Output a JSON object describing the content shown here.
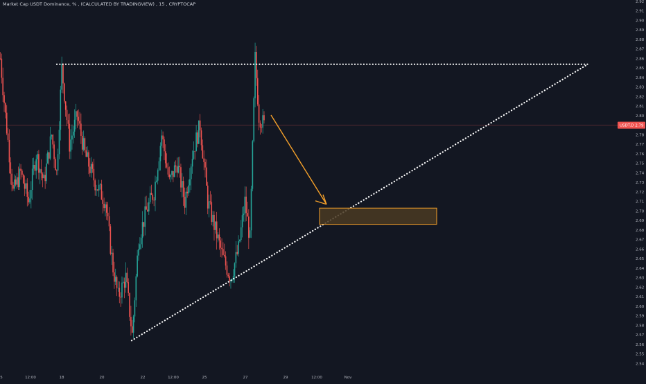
{
  "header": {
    "symbol_title": "Market Cap USDT Dominance, %",
    "source": "(CALCULATED BY TRADINGVIEW)",
    "interval": "15",
    "exchange": "CRYPTOCAP"
  },
  "price_tag": {
    "label": "USDT.D",
    "value": "2.79"
  },
  "colors": {
    "background": "#131722",
    "up": "#26a69a",
    "down": "#ef5350",
    "grid": "#1e222d",
    "axis_text": "#b2b5be",
    "arrow": "#f6a12a",
    "zone_fill": "#4a3a22",
    "zone_border": "#f6a12a",
    "trendline": "#ffffff",
    "price_line": "#ef5350"
  },
  "chart_data": {
    "type": "candlestick",
    "title": "Market Cap USDT Dominance, %",
    "ylim": [
      2.53,
      2.92
    ],
    "y_ticks": [
      2.54,
      2.55,
      2.56,
      2.57,
      2.58,
      2.59,
      2.6,
      2.61,
      2.62,
      2.63,
      2.64,
      2.65,
      2.66,
      2.67,
      2.68,
      2.69,
      2.7,
      2.71,
      2.72,
      2.73,
      2.74,
      2.75,
      2.76,
      2.77,
      2.78,
      2.79,
      2.8,
      2.81,
      2.82,
      2.83,
      2.84,
      2.85,
      2.86,
      2.87,
      2.88,
      2.89,
      2.9,
      2.91,
      2.92
    ],
    "x_ticks": [
      "5",
      "12:00",
      "18",
      "20",
      "22",
      "12:00",
      "25",
      "27",
      "29",
      "12:00",
      "Nov"
    ],
    "last_value": 2.79,
    "anchors": [
      {
        "i": 0,
        "v": 2.86
      },
      {
        "i": 4,
        "v": 2.8
      },
      {
        "i": 10,
        "v": 2.72
      },
      {
        "i": 16,
        "v": 2.74
      },
      {
        "i": 22,
        "v": 2.71
      },
      {
        "i": 28,
        "v": 2.76
      },
      {
        "i": 34,
        "v": 2.73
      },
      {
        "i": 40,
        "v": 2.78
      },
      {
        "i": 44,
        "v": 2.74
      },
      {
        "i": 48,
        "v": 2.85
      },
      {
        "i": 54,
        "v": 2.77
      },
      {
        "i": 60,
        "v": 2.8
      },
      {
        "i": 66,
        "v": 2.76
      },
      {
        "i": 74,
        "v": 2.73
      },
      {
        "i": 82,
        "v": 2.71
      },
      {
        "i": 88,
        "v": 2.64
      },
      {
        "i": 92,
        "v": 2.61
      },
      {
        "i": 98,
        "v": 2.63
      },
      {
        "i": 103,
        "v": 2.57
      },
      {
        "i": 108,
        "v": 2.67
      },
      {
        "i": 114,
        "v": 2.7
      },
      {
        "i": 120,
        "v": 2.72
      },
      {
        "i": 126,
        "v": 2.78
      },
      {
        "i": 132,
        "v": 2.73
      },
      {
        "i": 138,
        "v": 2.75
      },
      {
        "i": 144,
        "v": 2.71
      },
      {
        "i": 150,
        "v": 2.76
      },
      {
        "i": 156,
        "v": 2.79
      },
      {
        "i": 162,
        "v": 2.71
      },
      {
        "i": 168,
        "v": 2.68
      },
      {
        "i": 174,
        "v": 2.65
      },
      {
        "i": 180,
        "v": 2.63
      },
      {
        "i": 186,
        "v": 2.66
      },
      {
        "i": 191,
        "v": 2.71
      },
      {
        "i": 195,
        "v": 2.67
      },
      {
        "i": 199,
        "v": 2.86
      },
      {
        "i": 202,
        "v": 2.8
      },
      {
        "i": 206,
        "v": 2.79
      }
    ],
    "annotations": {
      "resistance_line": {
        "value": 2.854
      },
      "support_line": {
        "from_value": 2.564,
        "to_value": 2.854
      },
      "target_zone": {
        "low": 2.686,
        "high": 2.703
      },
      "arrow": {
        "to_value": 2.707
      }
    }
  }
}
